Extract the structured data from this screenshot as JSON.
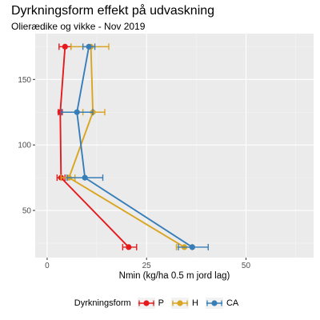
{
  "chart_title": "Dyrkningsform effekt på udvaskning",
  "chart_subtitle": "Olierædike og vikke - Nov 2019",
  "chart_data": {
    "type": "line",
    "xlabel": "Nmin (kg/ha 0.5 m jord lag)",
    "ylabel": "",
    "xlim": [
      -3,
      67
    ],
    "ylim": [
      185,
      14
    ],
    "y_reversed": true,
    "x_ticks": [
      0,
      25,
      50
    ],
    "y_ticks": [
      50,
      100,
      150
    ],
    "grid": true,
    "legend_title": "Dyrkningsform",
    "legend_position": "bottom",
    "series": [
      {
        "name": "P",
        "color": "#E41A1C",
        "points": [
          {
            "x": 20.5,
            "y": 22,
            "xerr_low": 19.0,
            "xerr_high": 22.5
          },
          {
            "x": 3.5,
            "y": 75,
            "xerr_low": 2.5,
            "xerr_high": 4.5
          },
          {
            "x": 3.3,
            "y": 125,
            "xerr_low": 2.8,
            "xerr_high": 3.8
          },
          {
            "x": 4.5,
            "y": 175,
            "xerr_low": 3.0,
            "xerr_high": 6.0
          }
        ]
      },
      {
        "name": "H",
        "color": "#DAA520",
        "points": [
          {
            "x": 34.5,
            "y": 22,
            "xerr_low": 32.5,
            "xerr_high": 36.5
          },
          {
            "x": 5.5,
            "y": 75,
            "xerr_low": 3.5,
            "xerr_high": 7.0
          },
          {
            "x": 11.5,
            "y": 125,
            "xerr_low": 9.0,
            "xerr_high": 14.5
          },
          {
            "x": 11.0,
            "y": 175,
            "xerr_low": 6.0,
            "xerr_high": 15.5
          }
        ]
      },
      {
        "name": "CA",
        "color": "#377EB8",
        "points": [
          {
            "x": 36.5,
            "y": 22,
            "xerr_low": 33.0,
            "xerr_high": 40.5
          },
          {
            "x": 9.5,
            "y": 75,
            "xerr_low": 5.0,
            "xerr_high": 14.0
          },
          {
            "x": 7.5,
            "y": 125,
            "xerr_low": 3.5,
            "xerr_high": 11.5
          },
          {
            "x": 10.5,
            "y": 175,
            "xerr_low": 9.0,
            "xerr_high": 12.0
          }
        ]
      }
    ]
  }
}
